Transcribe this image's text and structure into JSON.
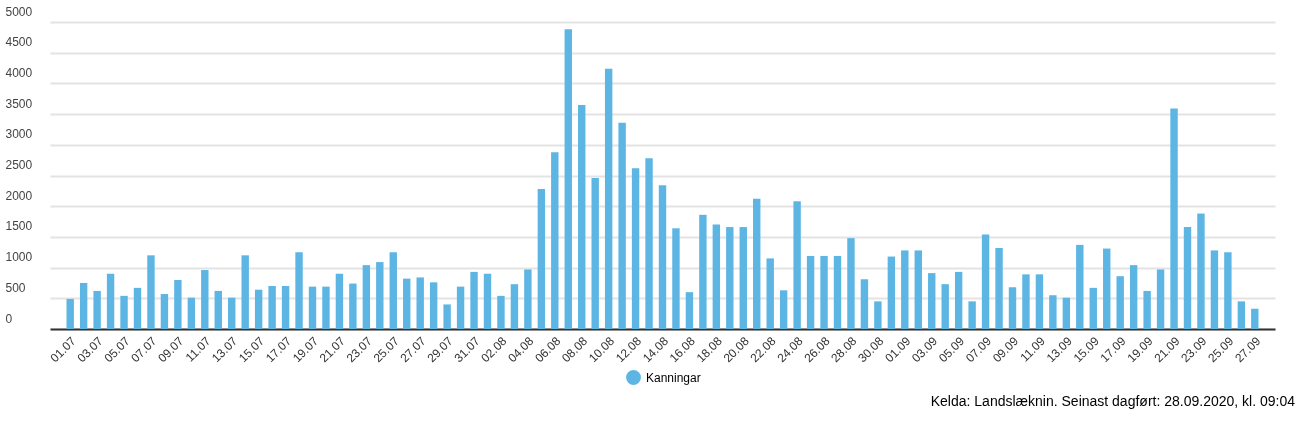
{
  "chart_data": {
    "type": "bar",
    "categories": [
      "01.07",
      null,
      "03.07",
      null,
      "05.07",
      null,
      "07.07",
      null,
      "09.07",
      null,
      "11.07",
      null,
      "13.07",
      null,
      "15.07",
      null,
      "17.07",
      null,
      "19.07",
      null,
      "21.07",
      null,
      "23.07",
      null,
      "25.07",
      null,
      "27.07",
      null,
      "29.07",
      null,
      "31.07",
      null,
      "02.08",
      null,
      "04.08",
      null,
      "06.08",
      null,
      "08.08",
      null,
      "10.08",
      null,
      "12.08",
      null,
      "14.08",
      null,
      "16.08",
      null,
      "18.08",
      null,
      "20.08",
      null,
      "22.08",
      null,
      "24.08",
      null,
      "26.08",
      null,
      "28.08",
      null,
      "30.08",
      null,
      "01.09",
      null,
      "03.09",
      null,
      "05.09",
      null,
      "07.09",
      null,
      "09.09",
      null,
      "11.09",
      null,
      "13.09",
      null,
      "15.09",
      null,
      "17.09",
      null,
      "19.09",
      null,
      "21.09",
      null,
      "23.09",
      null,
      "25.09",
      null,
      "27.09"
    ],
    "series": [
      {
        "name": "Kanningar",
        "color": "#5db5e3",
        "values": [
          490,
          750,
          620,
          900,
          540,
          670,
          1200,
          570,
          800,
          510,
          960,
          620,
          510,
          1200,
          640,
          700,
          700,
          1250,
          690,
          690,
          900,
          740,
          1040,
          1090,
          1250,
          820,
          840,
          760,
          400,
          690,
          930,
          900,
          540,
          730,
          970,
          2280,
          2880,
          4880,
          3650,
          2460,
          4240,
          3360,
          2620,
          2780,
          2340,
          1640,
          600,
          1860,
          1700,
          1660,
          1660,
          2120,
          1150,
          630,
          2080,
          1190,
          1190,
          1190,
          1480,
          810,
          450,
          1180,
          1280,
          1280,
          910,
          730,
          930,
          450,
          1540,
          1320,
          680,
          890,
          890,
          550,
          510,
          1370,
          670,
          1310,
          860,
          1040,
          620,
          970,
          3590,
          1660,
          1880,
          1280,
          1250,
          450,
          330
        ]
      }
    ],
    "ylim": [
      0,
      5000
    ],
    "yticks": [
      0,
      500,
      1000,
      1500,
      2000,
      2500,
      3000,
      3500,
      4000,
      4500,
      5000
    ],
    "grid": "y",
    "legend": "bottom",
    "annotations": [
      "Kelda: Landslæknin. Seinast dagført: 28.09.2020, kl. 09:04"
    ]
  }
}
